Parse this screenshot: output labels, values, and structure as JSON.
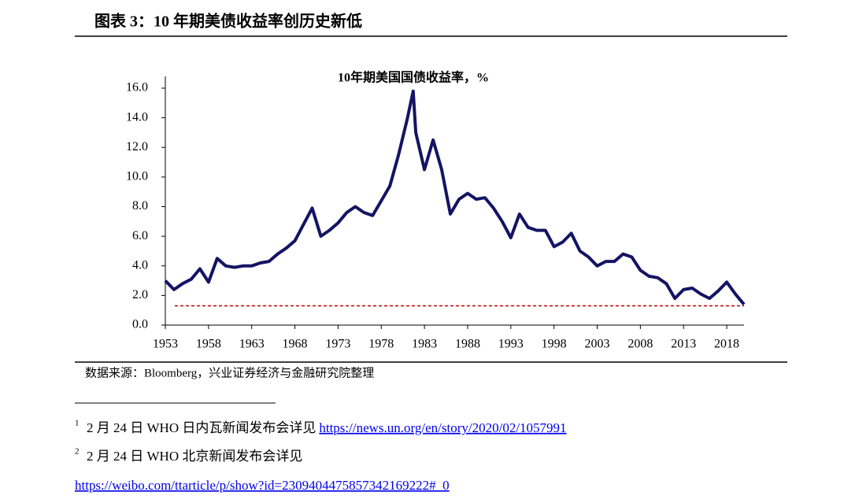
{
  "header": {
    "title": "图表 3：10 年期美债收益率创历史新低"
  },
  "chart_data": {
    "type": "line",
    "title": "10年期美国国债收益率，%",
    "x": [
      1953,
      1954,
      1955,
      1956,
      1957,
      1958,
      1959,
      1960,
      1961,
      1962,
      1963,
      1964,
      1965,
      1966,
      1967,
      1968,
      1969,
      1970,
      1971,
      1972,
      1973,
      1974,
      1975,
      1976,
      1977,
      1978,
      1979,
      1980,
      1981,
      1981.7,
      1982,
      1983,
      1984,
      1985,
      1986,
      1987,
      1988,
      1989,
      1990,
      1991,
      1992,
      1993,
      1994,
      1995,
      1996,
      1997,
      1998,
      1999,
      2000,
      2001,
      2002,
      2003,
      2004,
      2005,
      2006,
      2007,
      2008,
      2009,
      2010,
      2011,
      2012,
      2013,
      2014,
      2015,
      2016,
      2017,
      2018,
      2019,
      2020
    ],
    "values": [
      3.0,
      2.4,
      2.8,
      3.1,
      3.8,
      2.9,
      4.5,
      4.0,
      3.9,
      4.0,
      4.0,
      4.2,
      4.3,
      4.8,
      5.2,
      5.7,
      6.8,
      7.9,
      6.0,
      6.4,
      6.9,
      7.6,
      8.0,
      7.6,
      7.4,
      8.4,
      9.4,
      11.5,
      13.9,
      15.8,
      13.0,
      10.5,
      12.5,
      10.5,
      7.5,
      8.5,
      8.9,
      8.5,
      8.6,
      7.9,
      7.0,
      5.9,
      7.5,
      6.6,
      6.4,
      6.4,
      5.3,
      5.6,
      6.2,
      5.0,
      4.6,
      4.0,
      4.3,
      4.3,
      4.8,
      4.6,
      3.7,
      3.3,
      3.2,
      2.8,
      1.8,
      2.4,
      2.5,
      2.1,
      1.8,
      2.3,
      2.9,
      2.1,
      1.4
    ],
    "color": "#141464",
    "reference_line": {
      "value": 1.3,
      "color": "#c00000"
    },
    "xlim": [
      1953,
      2020
    ],
    "xticks": [
      1953,
      1958,
      1963,
      1968,
      1973,
      1978,
      1983,
      1988,
      1993,
      1998,
      2003,
      2008,
      2013,
      2018
    ],
    "ylim": [
      0,
      16
    ],
    "yticks": [
      {
        "value": 0,
        "label": "0.0"
      },
      {
        "value": 2,
        "label": "2.0"
      },
      {
        "value": 4,
        "label": "4.0"
      },
      {
        "value": 6,
        "label": "6.0"
      },
      {
        "value": 8,
        "label": "8.0"
      },
      {
        "value": 10,
        "label": "10.0"
      },
      {
        "value": 12,
        "label": "12.0"
      },
      {
        "value": 14,
        "label": "14.0"
      },
      {
        "value": 16,
        "label": "16.0"
      }
    ]
  },
  "source": "数据来源：Bloomberg，兴业证券经济与金融研究院整理",
  "footnotes": [
    {
      "marker": "1",
      "text": "2 月 24 日 WHO 日内瓦新闻发布会详见",
      "link": "https://news.un.org/en/story/2020/02/1057991"
    },
    {
      "marker": "2",
      "text": "2 月 24 日 WHO 北京新闻发布会详见",
      "link": "https://weibo.com/ttarticle/p/show?id=2309404475857342169222#_0"
    }
  ]
}
